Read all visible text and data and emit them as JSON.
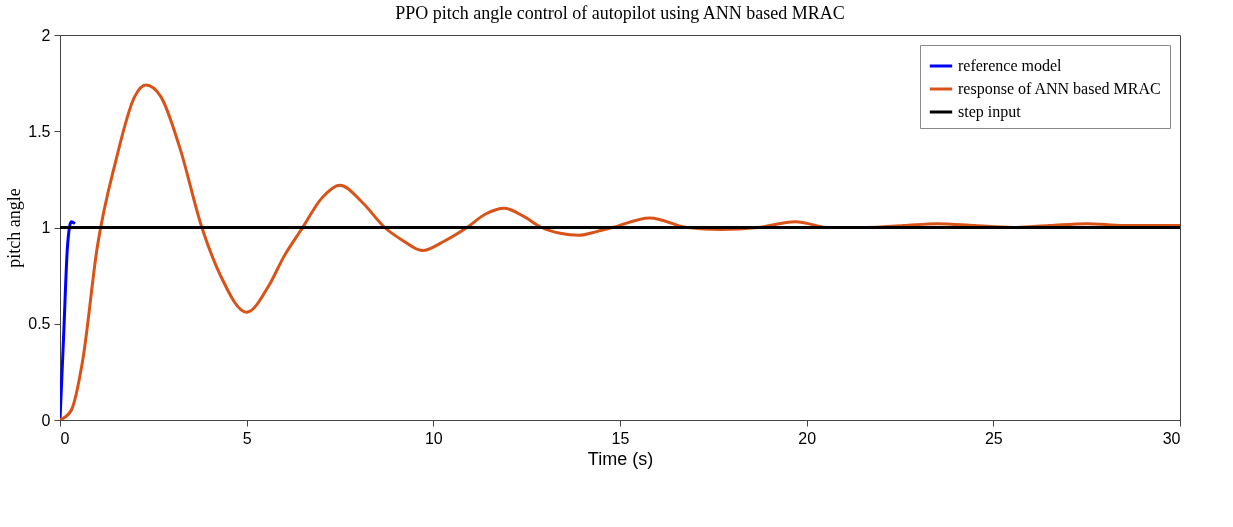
{
  "chart_data": {
    "type": "line",
    "title": "PPO pitch angle control of autopilot using ANN based MRAC",
    "xlabel": "Time (s)",
    "ylabel": "pitch angle",
    "xlim": [
      0,
      30
    ],
    "ylim": [
      0,
      2
    ],
    "xticks": [
      0,
      5,
      10,
      15,
      20,
      25,
      30
    ],
    "yticks": [
      0,
      0.5,
      1,
      1.5,
      2
    ],
    "grid": false,
    "legend": "top right",
    "line_style": "solid",
    "marker": "none",
    "series": [
      {
        "name": "reference model",
        "color": "#0000ff",
        "x": [
          0,
          0.1,
          0.2,
          0.3,
          0.4
        ],
        "values": [
          0,
          0.45,
          0.9,
          1.03,
          1.02
        ]
      },
      {
        "name": "response of ANN based MRAC",
        "color": "#d95319",
        "x": [
          0,
          0.3,
          0.6,
          1.0,
          1.5,
          2.0,
          2.3,
          2.7,
          3.2,
          3.8,
          4.3,
          5.0,
          5.6,
          6.0,
          6.5,
          7.0,
          7.5,
          8.1,
          8.7,
          9.2,
          9.7,
          10.3,
          10.9,
          11.4,
          11.9,
          12.4,
          12.9,
          13.4,
          13.9,
          14.4,
          14.8,
          15.8,
          16.8,
          17.7,
          18.7,
          19.7,
          20.6,
          21.6,
          22.6,
          23.5,
          24.5,
          25.5,
          26.5,
          27.5,
          28.5,
          30
        ],
        "values": [
          0,
          0.05,
          0.3,
          0.9,
          1.35,
          1.68,
          1.74,
          1.68,
          1.42,
          1.0,
          0.75,
          0.56,
          0.7,
          0.85,
          1.0,
          1.15,
          1.22,
          1.13,
          1.0,
          0.93,
          0.88,
          0.93,
          1.0,
          1.07,
          1.1,
          1.06,
          1.0,
          0.97,
          0.96,
          0.98,
          1.0,
          1.05,
          1.0,
          0.99,
          1.0,
          1.03,
          1.0,
          1.0,
          1.01,
          1.02,
          1.01,
          1.0,
          1.01,
          1.02,
          1.01,
          1.01
        ]
      },
      {
        "name": "step input",
        "color": "#000000",
        "x": [
          0,
          30
        ],
        "values": [
          1,
          1
        ]
      }
    ]
  }
}
